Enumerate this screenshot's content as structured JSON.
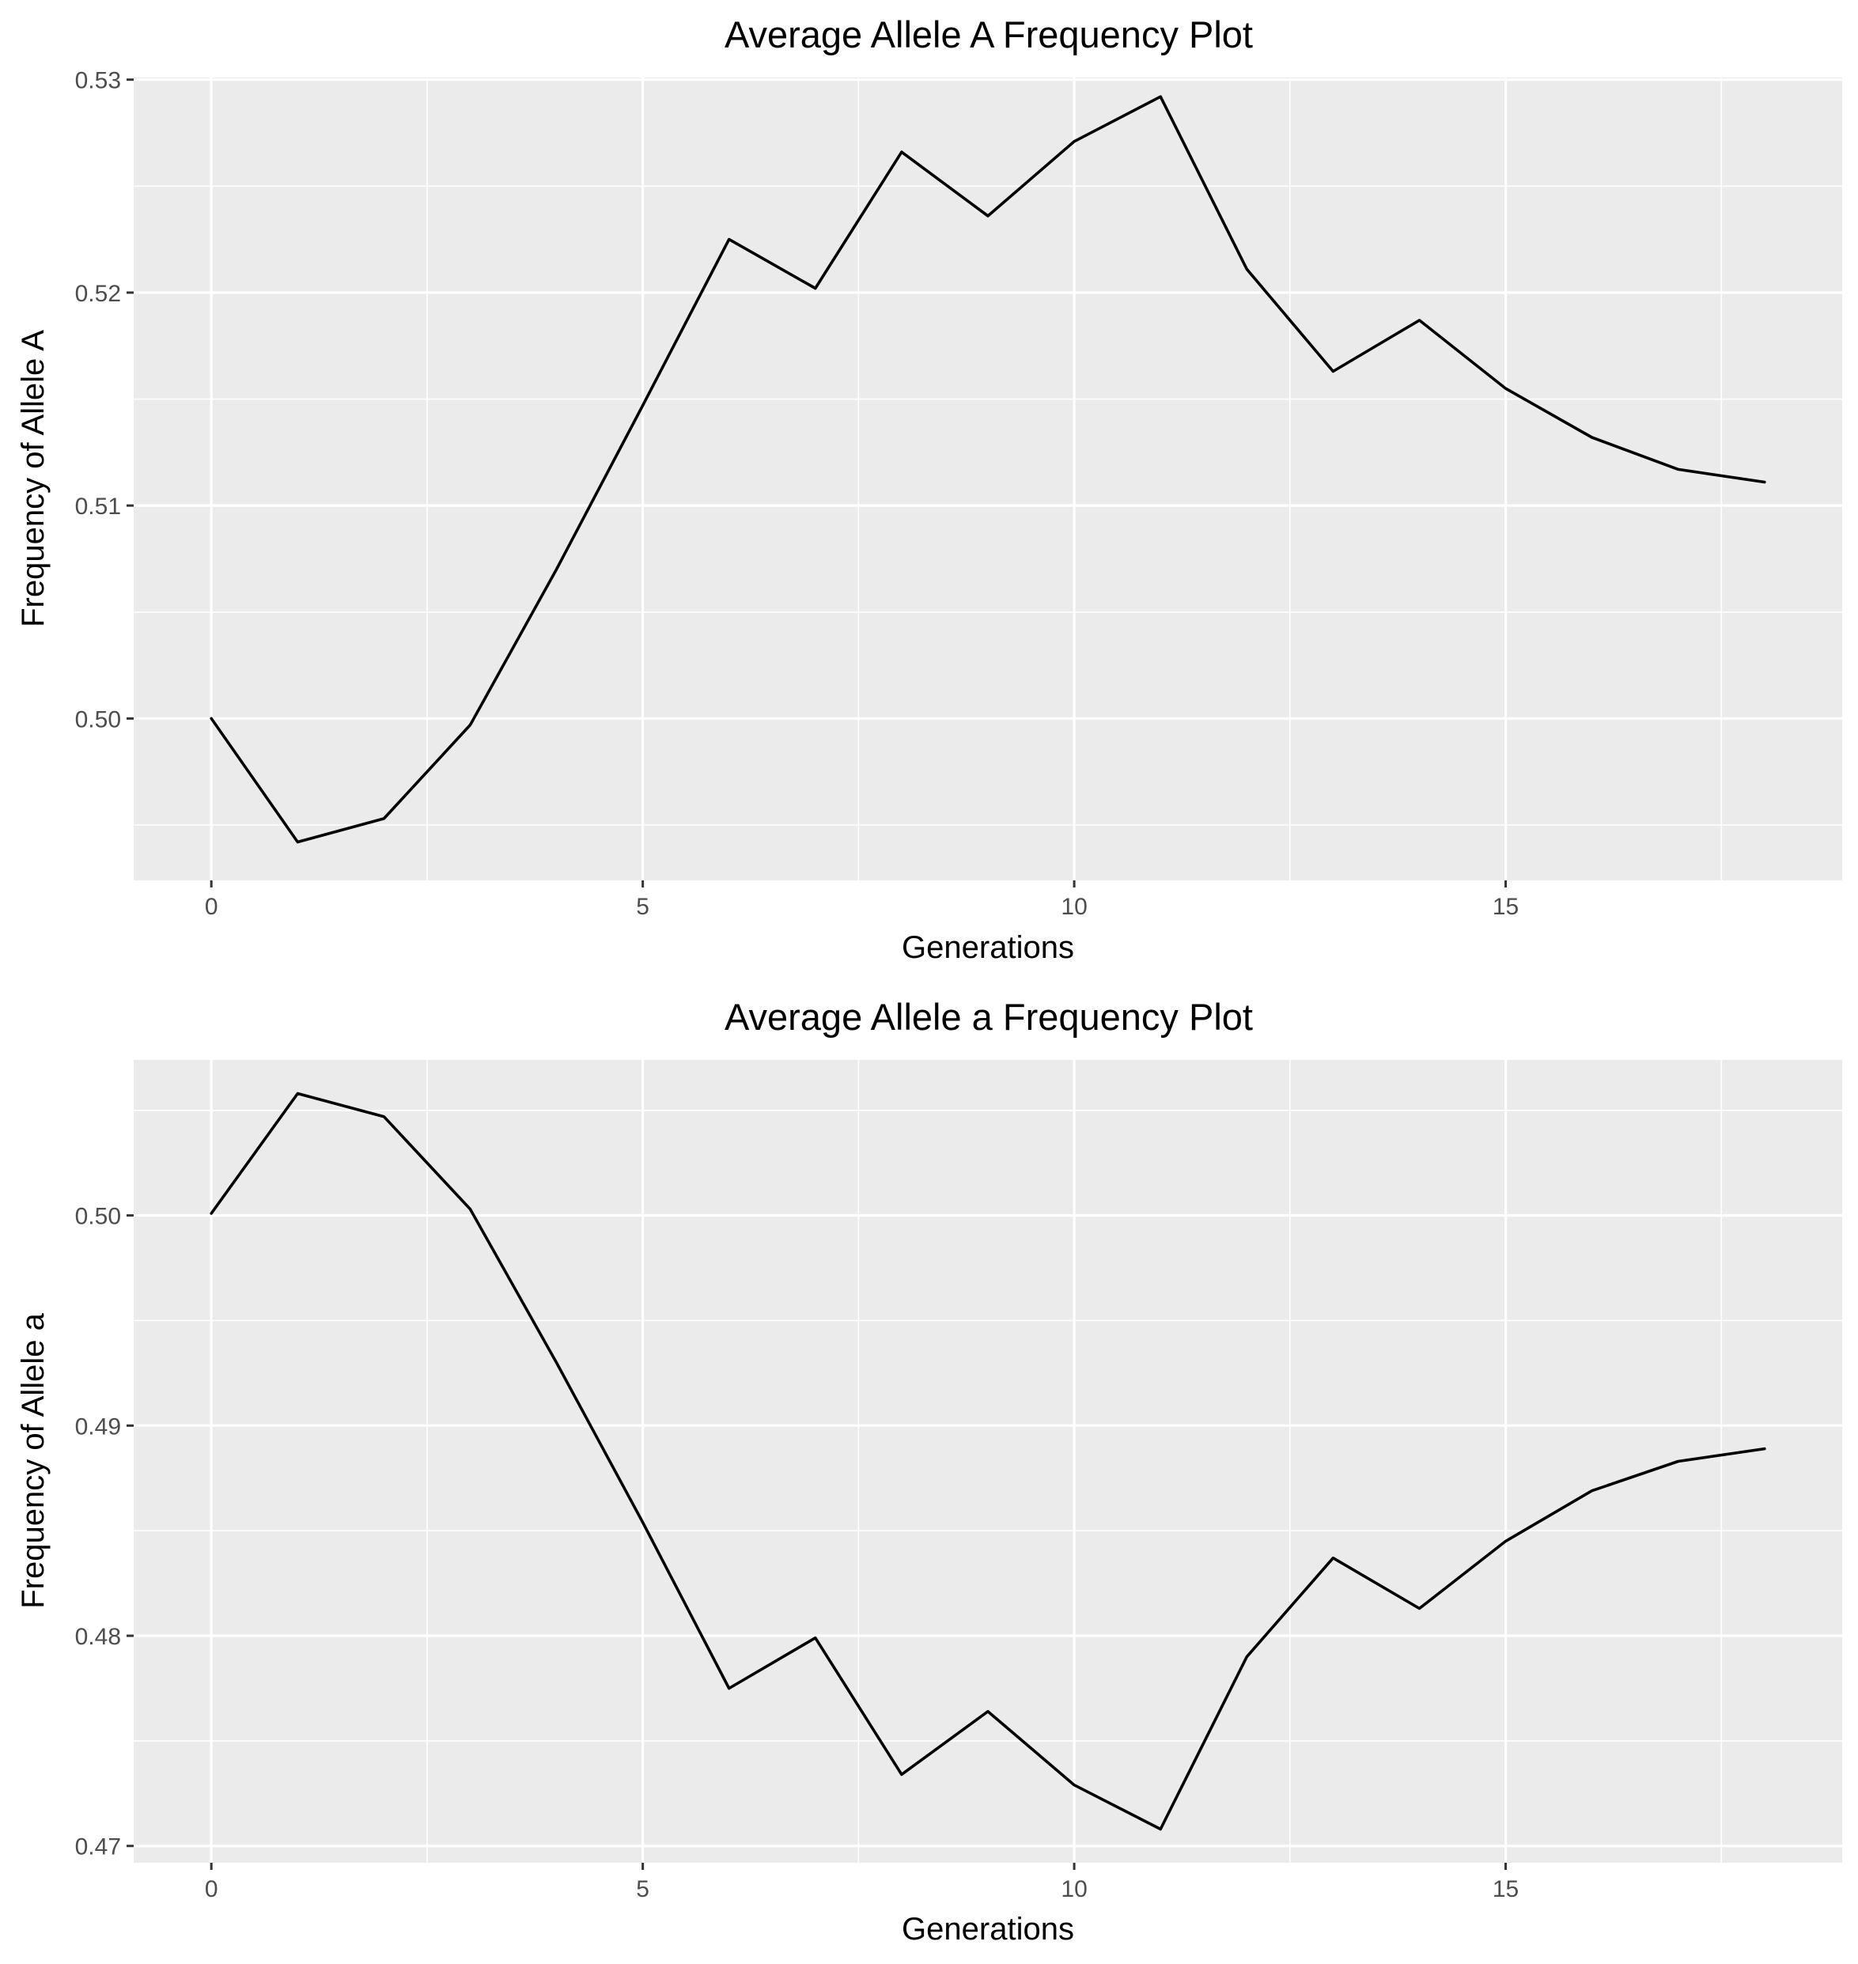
{
  "chart_data": [
    {
      "type": "line",
      "title": "Average Allele A Frequency Plot",
      "xlabel": "Generations",
      "ylabel": "Frequency of Allele A",
      "xlim": [
        -0.9,
        18.9
      ],
      "ylim": [
        0.4924,
        0.5301
      ],
      "xticks": [
        0,
        5,
        10,
        15
      ],
      "xtick_labels": [
        "0",
        "5",
        "10",
        "15"
      ],
      "yticks": [
        0.5,
        0.51,
        0.52,
        0.53
      ],
      "ytick_labels": [
        "0.50",
        "0.51",
        "0.52",
        "0.53"
      ],
      "x": [
        0,
        1,
        2,
        3,
        4,
        5,
        6,
        7,
        8,
        9,
        10,
        11,
        12,
        13,
        14,
        15,
        16,
        17,
        18
      ],
      "y": [
        0.5,
        0.4942,
        0.4953,
        0.4997,
        0.507,
        0.5147,
        0.5225,
        0.5202,
        0.5266,
        0.5236,
        0.5271,
        0.5292,
        0.5211,
        0.5163,
        0.5187,
        0.5155,
        0.5132,
        0.5117,
        0.5111
      ],
      "grid": true,
      "line_color": "#000000",
      "panel_color": "#ebebeb",
      "grid_color": "#ffffff"
    },
    {
      "type": "line",
      "title": "Average Allele a Frequency Plot",
      "xlabel": "Generations",
      "ylabel": "Frequency of Allele a",
      "xlim": [
        -0.9,
        18.9
      ],
      "ylim": [
        0.4692,
        0.5074
      ],
      "xticks": [
        0,
        5,
        10,
        15
      ],
      "xtick_labels": [
        "0",
        "5",
        "10",
        "15"
      ],
      "yticks": [
        0.47,
        0.48,
        0.49,
        0.5
      ],
      "ytick_labels": [
        "0.47",
        "0.48",
        "0.49",
        "0.50"
      ],
      "x": [
        0,
        1,
        2,
        3,
        4,
        5,
        6,
        7,
        8,
        9,
        10,
        11,
        12,
        13,
        14,
        15,
        16,
        17,
        18
      ],
      "y": [
        0.5001,
        0.5058,
        0.5047,
        0.5003,
        0.493,
        0.4854,
        0.4775,
        0.4799,
        0.4734,
        0.4764,
        0.4729,
        0.4708,
        0.479,
        0.4837,
        0.4813,
        0.4845,
        0.4869,
        0.4883,
        0.4889
      ],
      "grid": true,
      "line_color": "#000000",
      "panel_color": "#ebebeb",
      "grid_color": "#ffffff"
    }
  ]
}
